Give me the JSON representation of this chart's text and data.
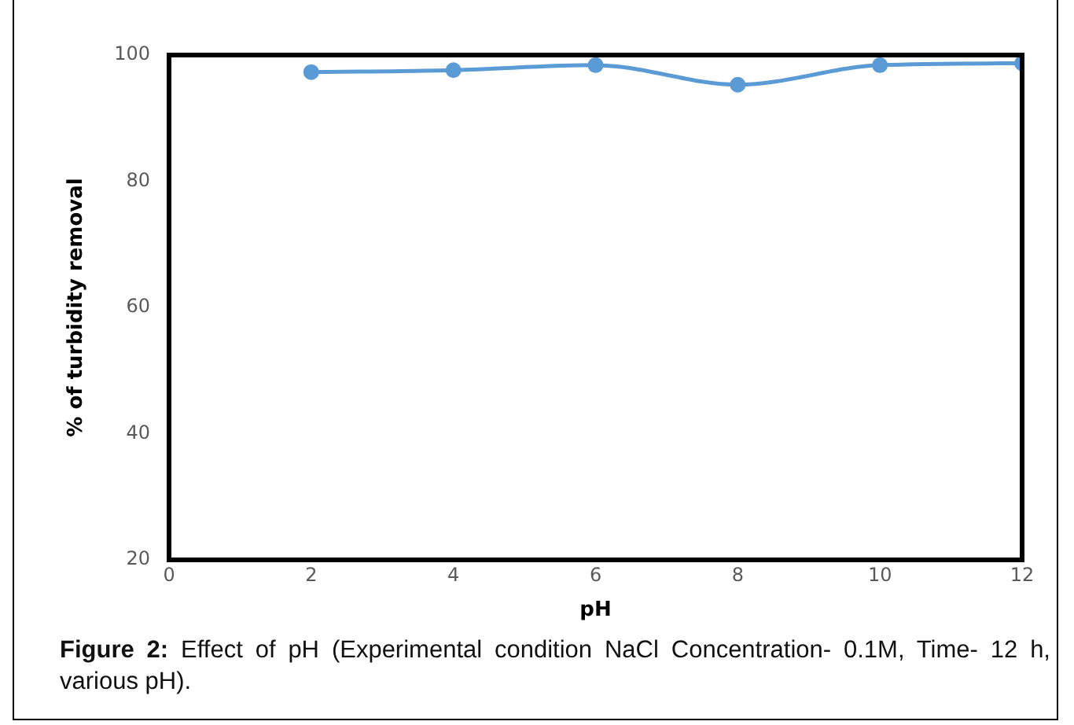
{
  "chart_data": {
    "type": "line",
    "xlabel": "pH",
    "ylabel": "% of turbidity removal",
    "x": [
      2,
      4,
      6,
      8,
      10,
      12
    ],
    "series": [
      {
        "color": "#5b9bd5",
        "values": [
          97.3,
          97.6,
          98.4,
          95.3,
          98.4,
          98.7
        ]
      }
    ],
    "xlim": [
      0,
      12
    ],
    "xticks": [
      0,
      2,
      4,
      6,
      8,
      10,
      12
    ],
    "ylim": [
      20,
      100
    ],
    "yticks": [
      20,
      40,
      60,
      80,
      100
    ],
    "grid": false,
    "legend": false,
    "marker": "circle",
    "line_style": "solid",
    "annotations": [
      "Figure 2: Effect of pH (Experimental condition NaCl Concentration- 0.1M, Time- 12 h, various pH)."
    ]
  }
}
